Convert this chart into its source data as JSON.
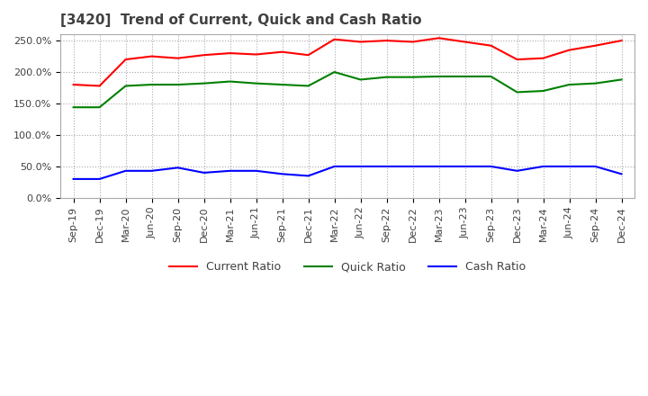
{
  "title": "[3420]  Trend of Current, Quick and Cash Ratio",
  "title_fontsize": 11,
  "title_color": "#404040",
  "background_color": "#ffffff",
  "plot_background_color": "#ffffff",
  "grid_color": "#aaaaaa",
  "ylim": [
    0.0,
    2.6
  ],
  "yticks": [
    0.0,
    0.5,
    1.0,
    1.5,
    2.0,
    2.5
  ],
  "ytick_labels": [
    "0.0%",
    "50.0%",
    "100.0%",
    "150.0%",
    "200.0%",
    "250.0%"
  ],
  "x_labels": [
    "Sep-19",
    "Dec-19",
    "Mar-20",
    "Jun-20",
    "Sep-20",
    "Dec-20",
    "Mar-21",
    "Jun-21",
    "Sep-21",
    "Dec-21",
    "Mar-22",
    "Jun-22",
    "Sep-22",
    "Dec-22",
    "Mar-23",
    "Jun-23",
    "Sep-23",
    "Dec-23",
    "Mar-24",
    "Jun-24",
    "Sep-24",
    "Dec-24"
  ],
  "current_ratio": [
    1.8,
    1.78,
    2.2,
    2.25,
    2.22,
    2.27,
    2.3,
    2.28,
    2.32,
    2.27,
    2.52,
    2.48,
    2.5,
    2.48,
    2.54,
    2.48,
    2.42,
    2.2,
    2.22,
    2.35,
    2.42,
    2.5
  ],
  "quick_ratio": [
    1.44,
    1.44,
    1.78,
    1.8,
    1.8,
    1.82,
    1.85,
    1.82,
    1.8,
    1.78,
    2.0,
    1.88,
    1.92,
    1.92,
    1.93,
    1.93,
    1.93,
    1.68,
    1.7,
    1.8,
    1.82,
    1.88
  ],
  "cash_ratio": [
    0.3,
    0.3,
    0.43,
    0.43,
    0.48,
    0.4,
    0.43,
    0.43,
    0.38,
    0.35,
    0.5,
    0.5,
    0.5,
    0.5,
    0.5,
    0.5,
    0.5,
    0.43,
    0.5,
    0.5,
    0.5,
    0.38
  ],
  "current_color": "#ff0000",
  "quick_color": "#008000",
  "cash_color": "#0000ff",
  "line_width": 1.5,
  "legend_fontsize": 9,
  "tick_fontsize": 8,
  "legend_labels": [
    "Current Ratio",
    "Quick Ratio",
    "Cash Ratio"
  ]
}
